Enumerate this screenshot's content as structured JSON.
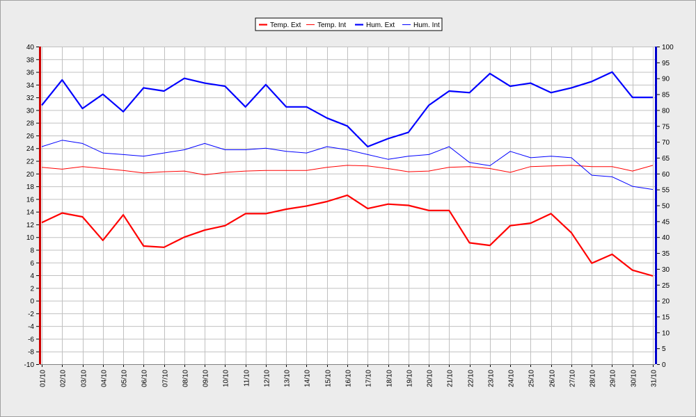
{
  "chart_data": {
    "type": "line",
    "title": "",
    "x": [
      "01/10",
      "02/10",
      "03/10",
      "04/10",
      "05/10",
      "06/10",
      "07/10",
      "08/10",
      "09/10",
      "10/10",
      "11/10",
      "12/10",
      "13/10",
      "14/10",
      "15/10",
      "16/10",
      "17/10",
      "18/10",
      "19/10",
      "20/10",
      "21/10",
      "22/10",
      "23/10",
      "24/10",
      "25/10",
      "26/10",
      "27/10",
      "28/10",
      "29/10",
      "30/10",
      "31/10"
    ],
    "y_left": {
      "min": -10,
      "max": 40,
      "step": 2,
      "color": "#cc0000"
    },
    "y_right": {
      "min": 0,
      "max": 100,
      "step": 5,
      "color": "#0000cc"
    },
    "grid": true,
    "legend_position": "top-center",
    "series": [
      {
        "name": "Temp. Ext",
        "axis": "left",
        "color": "#ff0000",
        "thick": true,
        "values": [
          12.3,
          13.8,
          13.2,
          9.5,
          13.5,
          8.6,
          8.4,
          10.0,
          11.1,
          11.8,
          13.7,
          13.7,
          14.4,
          14.9,
          15.6,
          16.6,
          14.5,
          15.2,
          15.0,
          14.2,
          14.2,
          9.1,
          8.7,
          11.8,
          12.2,
          13.7,
          10.7,
          5.9,
          7.3,
          4.8,
          3.9
        ]
      },
      {
        "name": "Temp. Int",
        "axis": "left",
        "color": "#ff0000",
        "thick": false,
        "values": [
          21.0,
          20.7,
          21.1,
          20.8,
          20.5,
          20.1,
          20.3,
          20.4,
          19.8,
          20.2,
          20.4,
          20.5,
          20.5,
          20.5,
          21.0,
          21.3,
          21.2,
          20.8,
          20.3,
          20.4,
          21.0,
          21.1,
          20.8,
          20.2,
          21.1,
          21.2,
          21.3,
          21.1,
          21.1,
          20.4,
          21.3
        ]
      },
      {
        "name": "Hum. Ext",
        "axis": "right",
        "color": "#0000ff",
        "thick": true,
        "values": [
          81.5,
          89.5,
          80.5,
          85.0,
          79.5,
          87.0,
          86.0,
          90.0,
          88.5,
          87.5,
          81.0,
          88.0,
          81.0,
          81.0,
          77.5,
          75.0,
          68.5,
          71.0,
          73.0,
          81.5,
          86.0,
          85.5,
          91.5,
          87.5,
          88.5,
          85.5,
          87.0,
          89.0,
          92.0,
          84.0,
          84.0
        ]
      },
      {
        "name": "Hum. Int",
        "axis": "right",
        "color": "#0000ff",
        "thick": false,
        "values": [
          68.5,
          70.5,
          69.5,
          66.5,
          66.0,
          65.5,
          66.5,
          67.5,
          69.5,
          67.5,
          67.5,
          68.0,
          67.0,
          66.5,
          68.5,
          67.5,
          66.0,
          64.5,
          65.5,
          66.0,
          68.5,
          63.5,
          62.5,
          67.0,
          65.0,
          65.5,
          65.0,
          59.5,
          59.0,
          56.0,
          55.0
        ]
      }
    ]
  }
}
